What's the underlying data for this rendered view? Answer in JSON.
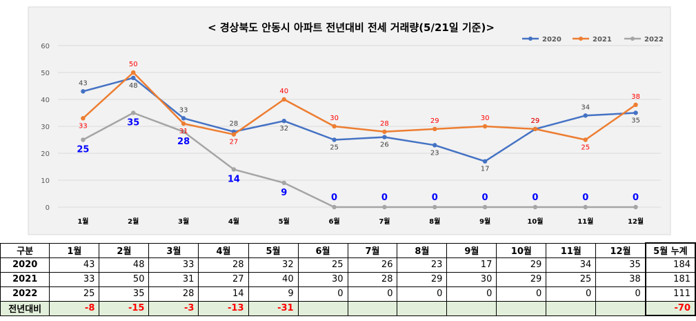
{
  "chart_data": {
    "type": "line",
    "title": "< 경상북도 안동시  아파트 전년대비 전세 거래량(5/21일 기준)>",
    "categories": [
      "1월",
      "2월",
      "3월",
      "4월",
      "5월",
      "6월",
      "7월",
      "8월",
      "9월",
      "10월",
      "11월",
      "12월"
    ],
    "ylim": [
      0,
      60
    ],
    "yticks": [
      0,
      10,
      20,
      30,
      40,
      50,
      60
    ],
    "grid": true,
    "legend_position": "top-right",
    "series": [
      {
        "name": "2020",
        "color": "#4472c4",
        "values": [
          43,
          48,
          33,
          28,
          32,
          25,
          26,
          23,
          17,
          29,
          34,
          35
        ]
      },
      {
        "name": "2021",
        "color": "#ed7d31",
        "values": [
          33,
          50,
          31,
          27,
          40,
          30,
          28,
          29,
          30,
          29,
          25,
          38
        ]
      },
      {
        "name": "2022",
        "color": "#a5a5a5",
        "values": [
          25,
          35,
          28,
          14,
          9,
          0,
          0,
          0,
          0,
          0,
          0,
          0
        ]
      }
    ],
    "label_colors": {
      "2020": "#404040",
      "2021": "#ff0000",
      "2022": "#0000ff"
    }
  },
  "table": {
    "corner": "구분",
    "months": [
      "1월",
      "2월",
      "3월",
      "4월",
      "5월",
      "6월",
      "7월",
      "8월",
      "9월",
      "10월",
      "11월",
      "12월"
    ],
    "total_header": "5월 누계",
    "rows": [
      {
        "label": "2020",
        "values": [
          "43",
          "48",
          "33",
          "28",
          "32",
          "25",
          "26",
          "23",
          "17",
          "29",
          "34",
          "35"
        ],
        "total": "184"
      },
      {
        "label": "2021",
        "values": [
          "33",
          "50",
          "31",
          "27",
          "40",
          "30",
          "28",
          "29",
          "30",
          "29",
          "25",
          "38"
        ],
        "total": "181"
      },
      {
        "label": "2022",
        "values": [
          "25",
          "35",
          "28",
          "14",
          "9",
          "0",
          "0",
          "0",
          "0",
          "0",
          "0",
          "0"
        ],
        "total": "111"
      }
    ],
    "diff_row": {
      "label": "전년대비",
      "values": [
        "-8",
        "-15",
        "-3",
        "-13",
        "-31",
        "",
        "",
        "",
        "",
        "",
        "",
        ""
      ],
      "total": "-70"
    }
  }
}
